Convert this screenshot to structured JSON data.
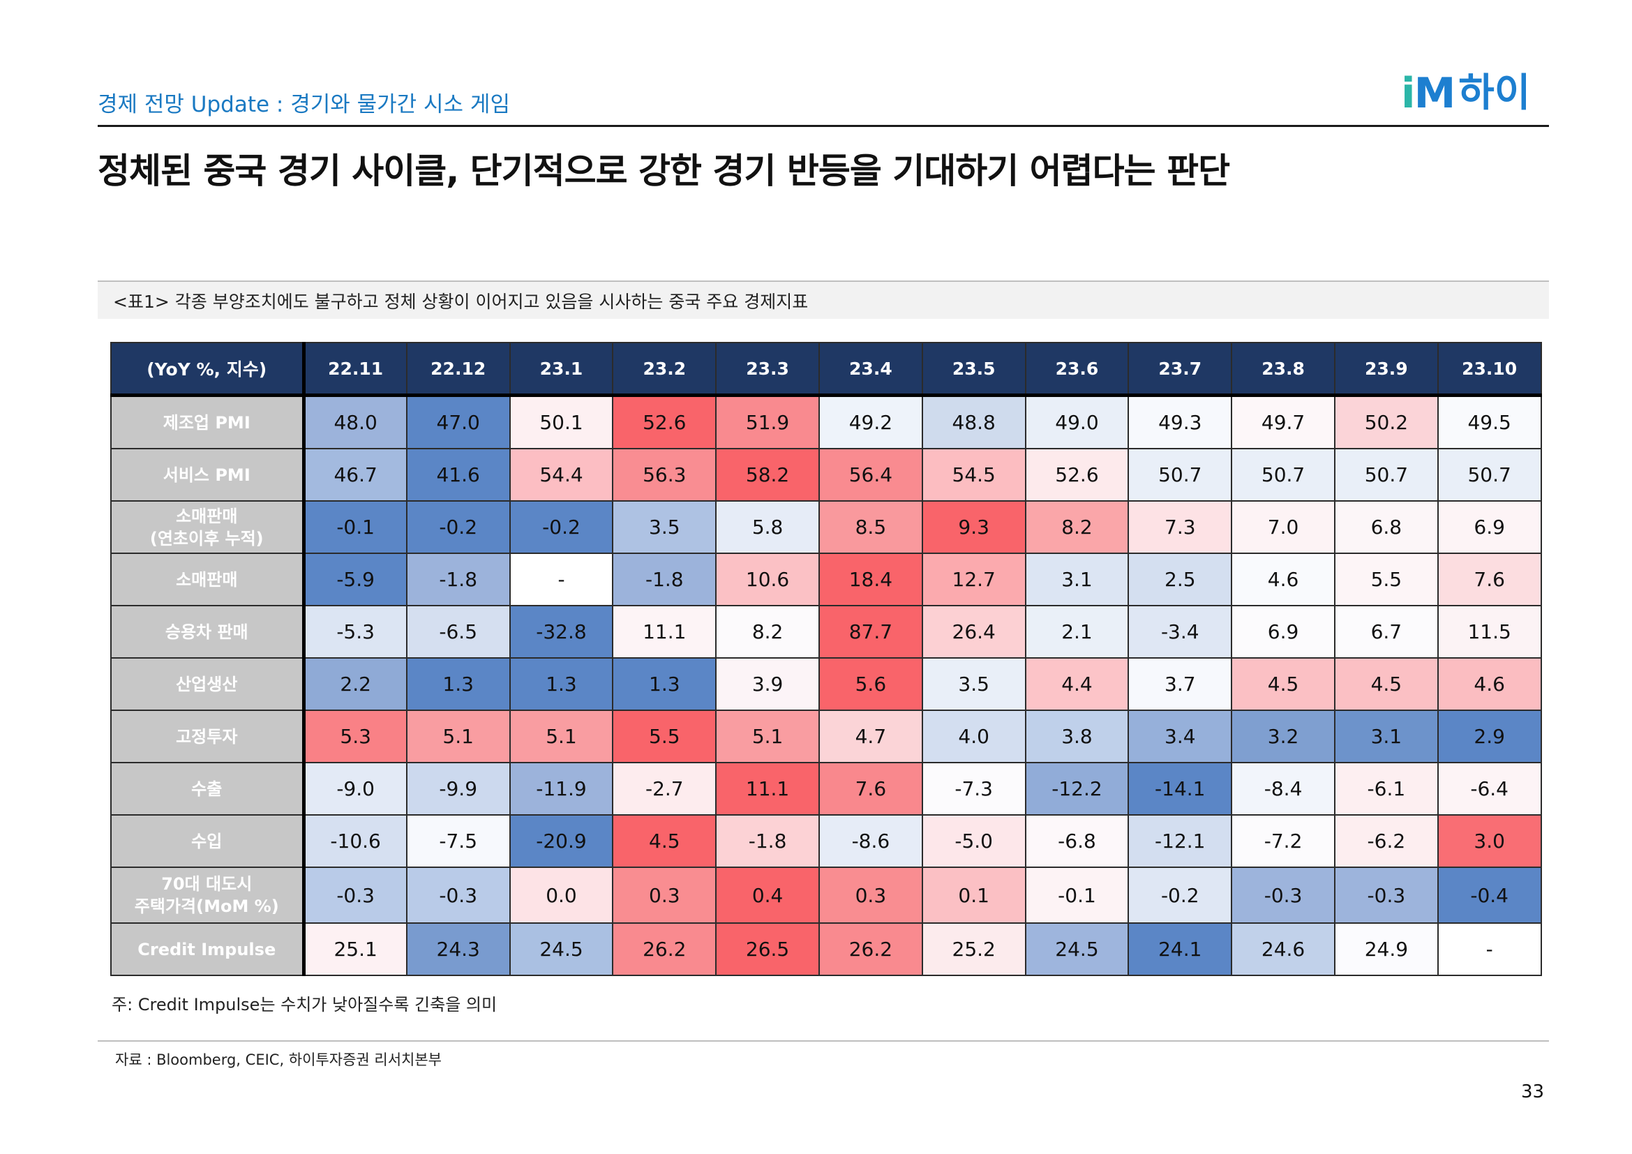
{
  "header": {
    "subtitle": "경제 전망 Update : 경기와 물가간 시소 게임",
    "logo_i": "i",
    "logo_m": "M",
    "logo_text": "하이",
    "headline": "정체된 중국 경기 사이클, 단기적으로 강한 경기 반등을 기대하기 어렵다는 판단"
  },
  "caption": "<표1> 각종 부양조치에도 불구하고 정체 상황이 이어지고 있음을 시사하는 중국 주요 경제지표",
  "table": {
    "corner": "(YoY %, 지수)",
    "columns": [
      "22.11",
      "22.12",
      "23.1",
      "23.2",
      "23.3",
      "23.4",
      "23.5",
      "23.6",
      "23.7",
      "23.8",
      "23.9",
      "23.10"
    ],
    "rows": [
      {
        "label": "제조업 PMI",
        "values": [
          "48.0",
          "47.0",
          "50.1",
          "52.6",
          "51.9",
          "49.2",
          "48.8",
          "49.0",
          "49.3",
          "49.7",
          "50.2",
          "49.5"
        ],
        "colors": [
          "#9cb3db",
          "#5b86c6",
          "#fdf0f2",
          "#f9646a",
          "#f98a8f",
          "#eef3fa",
          "#cfdbed",
          "#e9eff8",
          "#f7f9fd",
          "#fdf7f9",
          "#fbd4d8",
          "#f9fafd"
        ]
      },
      {
        "label": "서비스 PMI",
        "values": [
          "46.7",
          "41.6",
          "54.4",
          "56.3",
          "58.2",
          "56.4",
          "54.5",
          "52.6",
          "50.7",
          "50.7",
          "50.7",
          "50.7"
        ],
        "colors": [
          "#a3badf",
          "#5b86c6",
          "#fcbec3",
          "#f98d92",
          "#f9646a",
          "#f98b90",
          "#fcbdc1",
          "#fdeaec",
          "#e9eff8",
          "#e9eff8",
          "#e9eff8",
          "#e9eff8"
        ]
      },
      {
        "label": "소매판매\n(연초이후 누적)",
        "values": [
          "-0.1",
          "-0.2",
          "-0.2",
          "3.5",
          "5.8",
          "8.5",
          "9.3",
          "8.2",
          "7.3",
          "7.0",
          "6.8",
          "6.9"
        ],
        "colors": [
          "#5b86c6",
          "#5b86c6",
          "#5b86c6",
          "#aec2e3",
          "#e6ecf7",
          "#f9999d",
          "#f9646a",
          "#faa6a9",
          "#fde2e5",
          "#fdf3f5",
          "#fcf6f8",
          "#fdf4f6"
        ]
      },
      {
        "label": "소매판매",
        "values": [
          "-5.9",
          "-1.8",
          "-",
          "-1.8",
          "10.6",
          "18.4",
          "12.7",
          "3.1",
          "2.5",
          "4.6",
          "5.5",
          "7.6"
        ],
        "colors": [
          "#5b86c6",
          "#9cb3db",
          "#ffffff",
          "#9cb3db",
          "#fbc1c5",
          "#f9646a",
          "#fbaaae",
          "#dce5f3",
          "#d4dff0",
          "#f9fafd",
          "#fdf5f7",
          "#fcdde0"
        ]
      },
      {
        "label": "승용차 판매",
        "values": [
          "-5.3",
          "-6.5",
          "-32.8",
          "11.1",
          "8.2",
          "87.7",
          "26.4",
          "2.1",
          "-3.4",
          "6.9",
          "6.7",
          "11.5"
        ],
        "colors": [
          "#dce5f3",
          "#d5dff0",
          "#5b86c6",
          "#fdf4f6",
          "#fcfafc",
          "#f9646a",
          "#fcd0d3",
          "#eaf0f8",
          "#dfe7f4",
          "#fcfbfd",
          "#fcfbfd",
          "#fcf3f5"
        ]
      },
      {
        "label": "산업생산",
        "values": [
          "2.2",
          "1.3",
          "1.3",
          "1.3",
          "3.9",
          "5.6",
          "3.5",
          "4.4",
          "3.7",
          "4.5",
          "4.5",
          "4.6"
        ],
        "colors": [
          "#8faad6",
          "#5b86c6",
          "#5b86c6",
          "#5b86c6",
          "#fcf4f7",
          "#f9646a",
          "#e9eff8",
          "#fcc4c8",
          "#f7f9fd",
          "#fbc0c4",
          "#fbc0c4",
          "#fbbdc1"
        ]
      },
      {
        "label": "고정투자",
        "values": [
          "5.3",
          "5.1",
          "5.1",
          "5.5",
          "5.1",
          "4.7",
          "4.0",
          "3.8",
          "3.4",
          "3.2",
          "3.1",
          "2.9"
        ],
        "colors": [
          "#f98186",
          "#f99da1",
          "#f99da1",
          "#f9646a",
          "#f99da1",
          "#fbd4d7",
          "#d3def0",
          "#bfd0ea",
          "#96b0da",
          "#7f9fd0",
          "#6d93cb",
          "#5b86c6"
        ]
      },
      {
        "label": "수출",
        "values": [
          "-9.0",
          "-9.9",
          "-11.9",
          "-2.7",
          "11.1",
          "7.6",
          "-7.3",
          "-12.2",
          "-14.1",
          "-8.4",
          "-6.1",
          "-6.4"
        ],
        "colors": [
          "#e3eaf6",
          "#ccd9ee",
          "#9cb3db",
          "#fdecee",
          "#f9646a",
          "#f9888d",
          "#fcfbfd",
          "#91acd8",
          "#5b86c6",
          "#f2f5fb",
          "#fdeff1",
          "#fdf4f6"
        ]
      },
      {
        "label": "수입",
        "values": [
          "-10.6",
          "-7.5",
          "-20.9",
          "4.5",
          "-1.8",
          "-8.6",
          "-5.0",
          "-6.8",
          "-12.1",
          "-7.2",
          "-6.2",
          "3.0"
        ],
        "colors": [
          "#d6e0f1",
          "#f7f9fd",
          "#5b86c6",
          "#f9646a",
          "#fcd2d5",
          "#e6ecf7",
          "#fde7ea",
          "#fdf8fa",
          "#d3def0",
          "#fcfbfd",
          "#fdeef0",
          "#f96e74"
        ]
      },
      {
        "label": "70대 대도시\n주택가격(MoM %)",
        "values": [
          "-0.3",
          "-0.3",
          "0.0",
          "0.3",
          "0.4",
          "0.3",
          "0.1",
          "-0.1",
          "-0.2",
          "-0.3",
          "-0.3",
          "-0.4"
        ],
        "colors": [
          "#b9cbe8",
          "#b9cbe8",
          "#fde3e6",
          "#f98d91",
          "#f9646a",
          "#f98d91",
          "#fbc0c4",
          "#fdf3f5",
          "#dfe7f4",
          "#9db4dc",
          "#9db4dc",
          "#5b86c6"
        ],
        "tall": true
      },
      {
        "label": "Credit Impulse",
        "values": [
          "25.1",
          "24.3",
          "24.5",
          "26.2",
          "26.5",
          "26.2",
          "25.2",
          "24.5",
          "24.1",
          "24.6",
          "24.9",
          "-"
        ],
        "colors": [
          "#fdf1f3",
          "#799bcf",
          "#aac0e2",
          "#f98a8f",
          "#f9646a",
          "#f98a8f",
          "#fcebed",
          "#9eb5dd",
          "#5b86c6",
          "#c1d1ea",
          "#fbfbfe",
          "#ffffff"
        ]
      }
    ]
  },
  "note": "주: Credit Impulse는 수치가 낮아질수록 긴축을 의미",
  "source": "자료 : Bloomberg, CEIC, 하이투자증권 리서치본부",
  "page_number": "33"
}
